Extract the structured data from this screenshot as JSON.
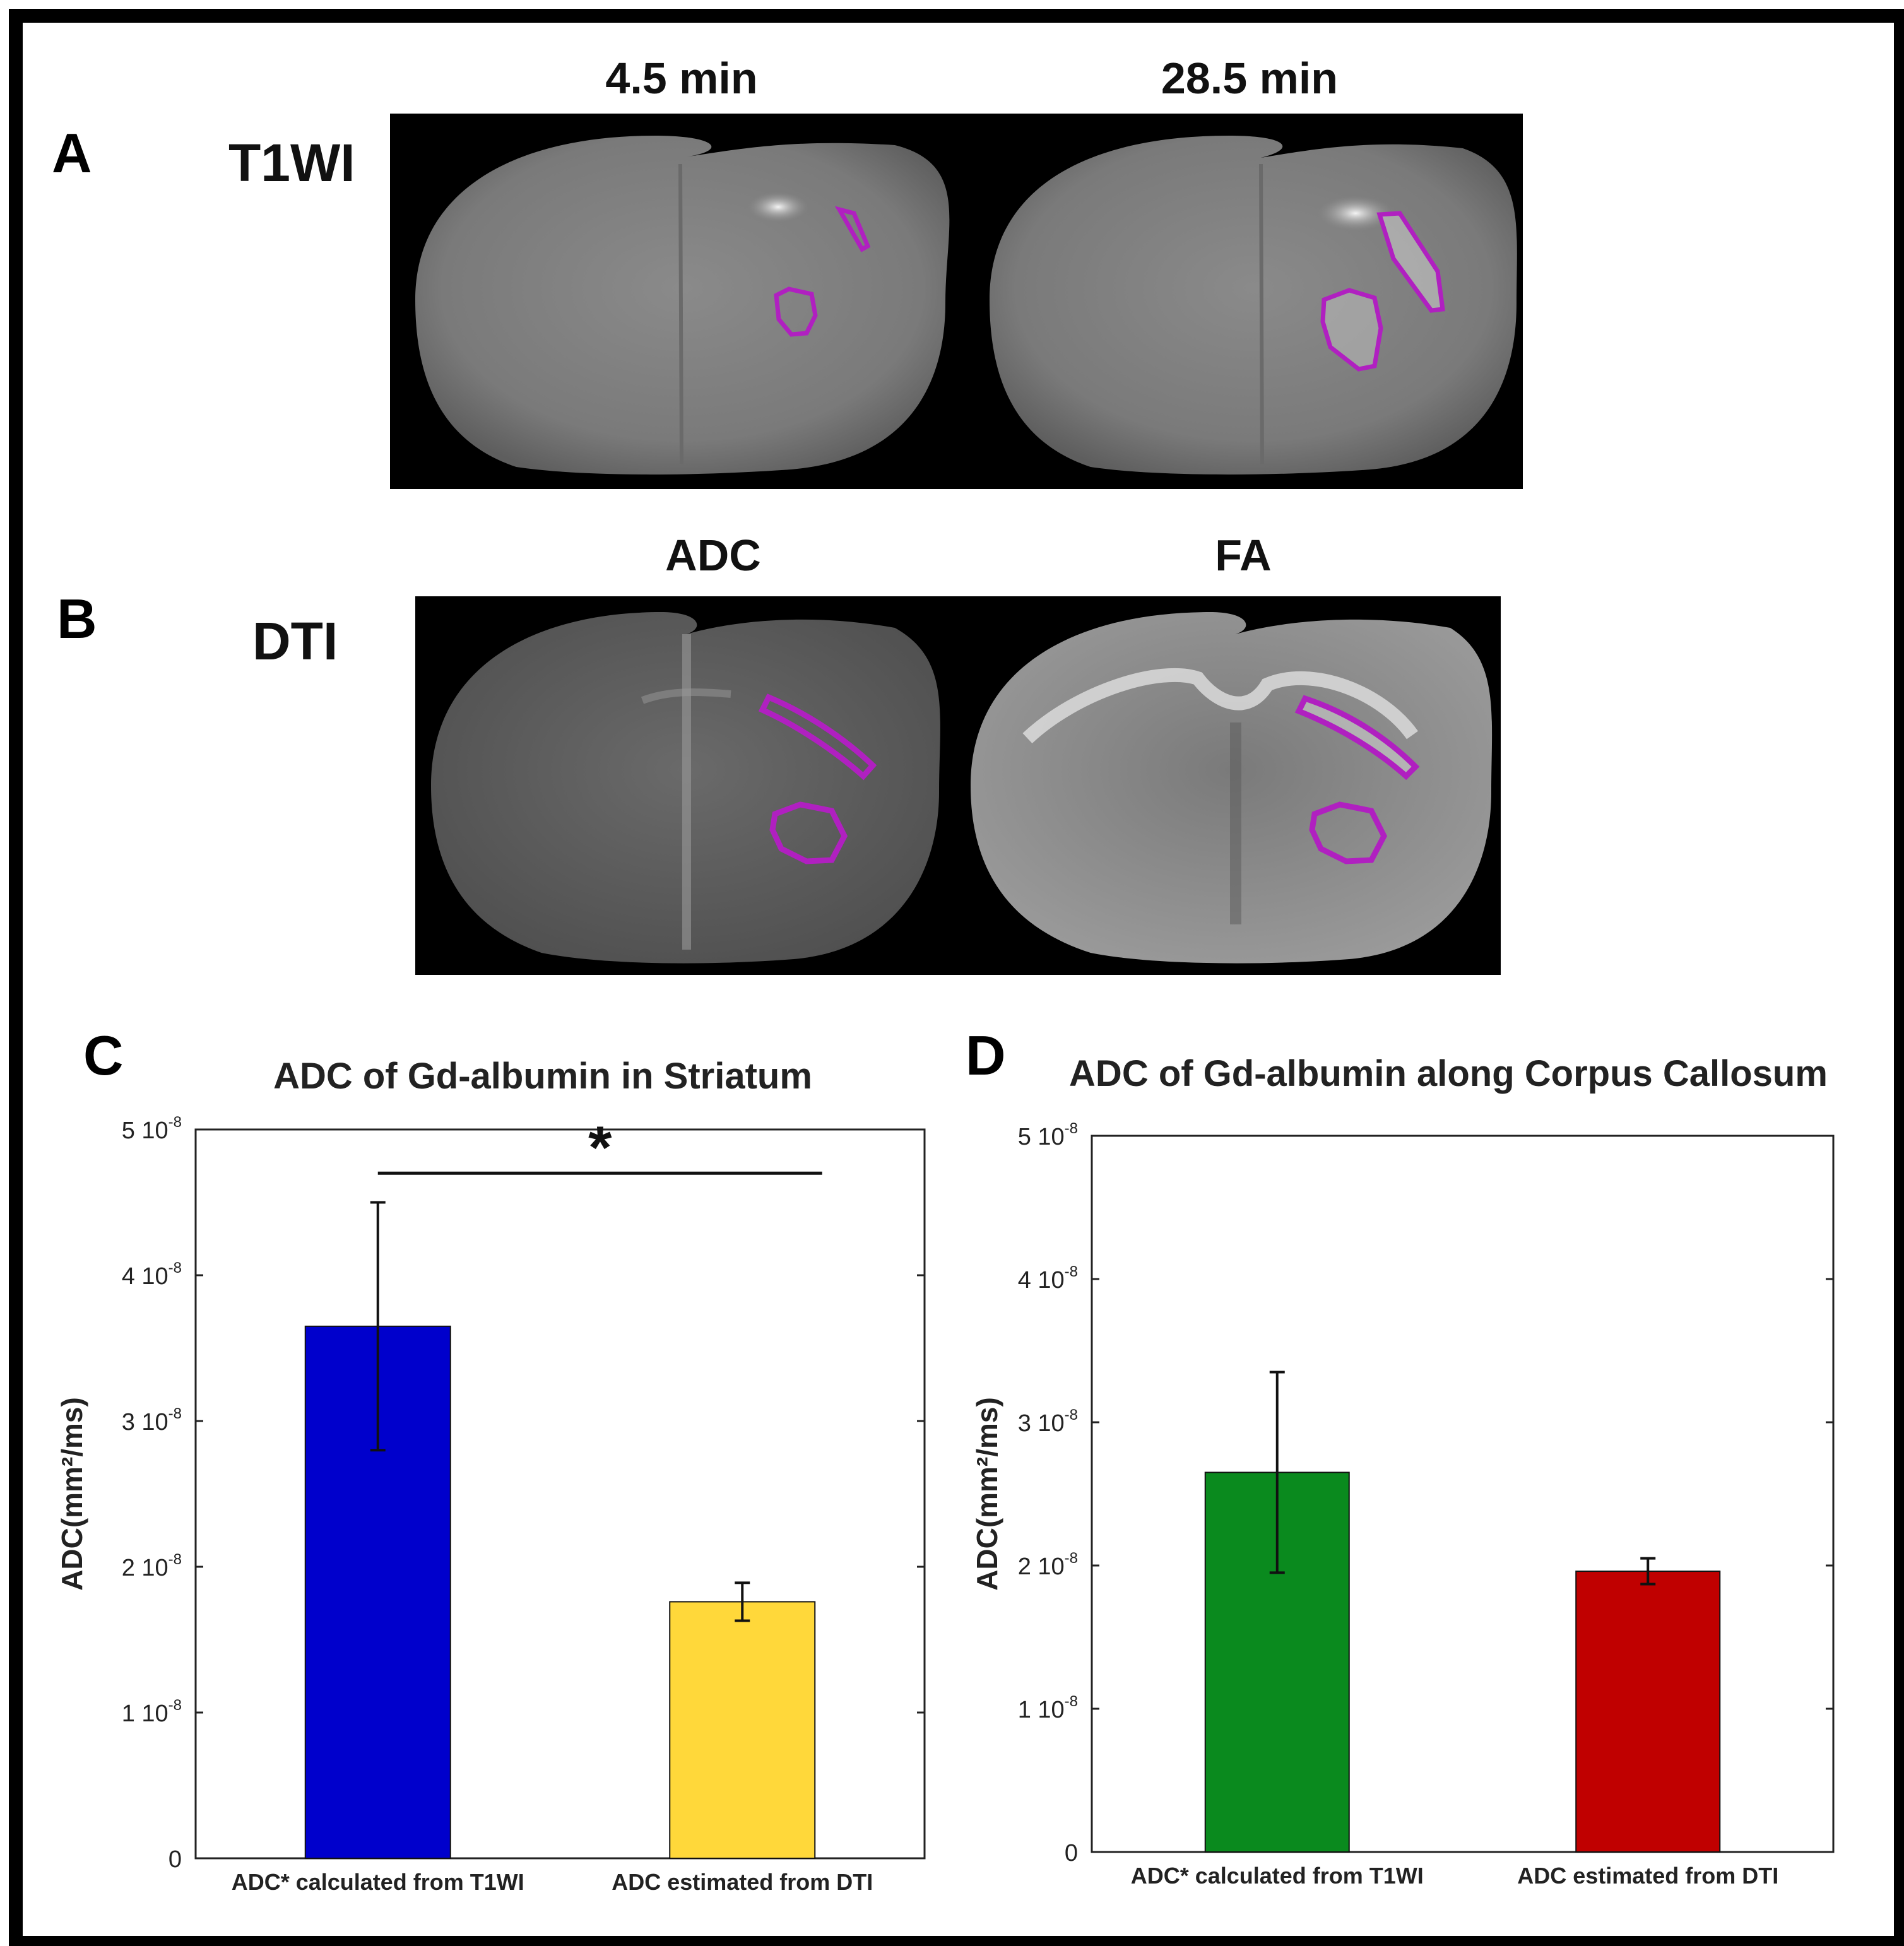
{
  "panels": {
    "a": {
      "letter": "A",
      "row_label": "T1WI",
      "image_labels": [
        "4.5 min",
        "28.5 min"
      ]
    },
    "b": {
      "letter": "B",
      "row_label": "DTI",
      "image_labels": [
        "ADC",
        "FA"
      ]
    },
    "c": {
      "letter": "C"
    },
    "d": {
      "letter": "D"
    }
  },
  "colors": {
    "roi_outline": "#b020c0",
    "bar_blue": "#0000cc",
    "bar_yellow": "#ffd83a",
    "bar_green": "#0a8a1e",
    "bar_red": "#c00000"
  },
  "chart_data": [
    {
      "type": "bar",
      "title": "ADC of Gd-albumin in Striatum",
      "ylabel": "ADC(mm²/ms)",
      "ylim": [
        0,
        5e-08
      ],
      "yticks": [
        0,
        1e-08,
        2e-08,
        3e-08,
        4e-08,
        5e-08
      ],
      "ytick_labels": [
        {
          "base": "0",
          "exp": ""
        },
        {
          "base": "1 10",
          "exp": "-8"
        },
        {
          "base": "2 10",
          "exp": "-8"
        },
        {
          "base": "3 10",
          "exp": "-8"
        },
        {
          "base": "4 10",
          "exp": "-8"
        },
        {
          "base": "5 10",
          "exp": "-8"
        }
      ],
      "categories": [
        "ADC* calculated from T1WI",
        "ADC estimated from DTI"
      ],
      "values": [
        3.65e-08,
        1.76e-08
      ],
      "errors": [
        8.5e-09,
        1.3e-09
      ],
      "bar_colors": [
        "#0000cc",
        "#ffd83a"
      ],
      "significance": {
        "label": "*",
        "between": [
          0,
          1
        ],
        "y": 4.7e-08
      },
      "grid": false
    },
    {
      "type": "bar",
      "title": "ADC of Gd-albumin along Corpus Callosum",
      "ylabel": "ADC(mm²/ms)",
      "ylim": [
        0,
        5e-08
      ],
      "yticks": [
        0,
        1e-08,
        2e-08,
        3e-08,
        4e-08,
        5e-08
      ],
      "ytick_labels": [
        {
          "base": "0",
          "exp": ""
        },
        {
          "base": "1 10",
          "exp": "-8"
        },
        {
          "base": "2 10",
          "exp": "-8"
        },
        {
          "base": "3 10",
          "exp": "-8"
        },
        {
          "base": "4 10",
          "exp": "-8"
        },
        {
          "base": "5 10",
          "exp": "-8"
        }
      ],
      "categories": [
        "ADC* calculated from T1WI",
        "ADC estimated from DTI"
      ],
      "values": [
        2.65e-08,
        1.96e-08
      ],
      "errors": [
        7e-09,
        9e-10
      ],
      "bar_colors": [
        "#0a8a1e",
        "#c00000"
      ],
      "grid": false
    }
  ]
}
